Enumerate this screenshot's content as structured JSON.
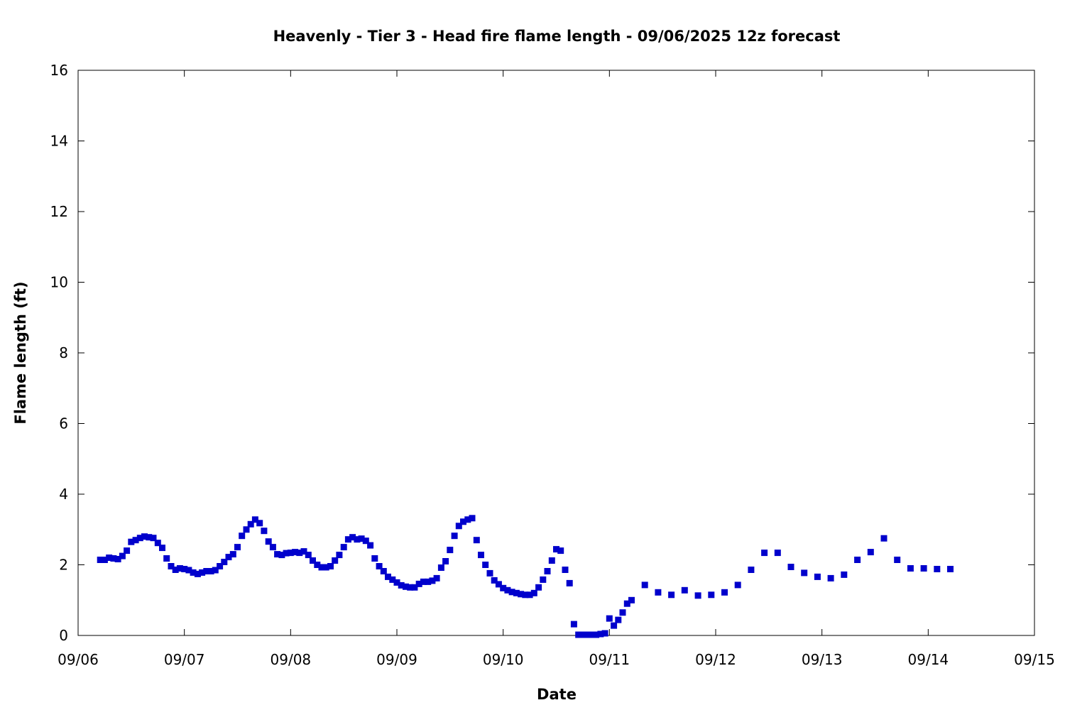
{
  "chart_data": {
    "type": "scatter",
    "title": "Heavenly - Tier 3 - Head fire flame length - 09/06/2025 12z forecast",
    "xlabel": "Date",
    "ylabel": "Flame length (ft)",
    "xlim": [
      "09/06",
      "09/15"
    ],
    "ylim": [
      0,
      16
    ],
    "x_ticks": [
      "09/06",
      "09/07",
      "09/08",
      "09/09",
      "09/10",
      "09/11",
      "09/12",
      "09/13",
      "09/14",
      "09/15"
    ],
    "y_ticks": [
      "0",
      "2",
      "4",
      "6",
      "8",
      "10",
      "12",
      "14",
      "16"
    ],
    "grid": false,
    "legend": false,
    "marker_color": "#0000cc",
    "series": [
      {
        "x": [
          "09/06 05:00",
          "09/06 06:00",
          "09/06 07:00",
          "09/06 08:00",
          "09/06 09:00",
          "09/06 10:00",
          "09/06 11:00",
          "09/06 12:00",
          "09/06 13:00",
          "09/06 14:00",
          "09/06 15:00",
          "09/06 16:00",
          "09/06 17:00",
          "09/06 18:00",
          "09/06 19:00",
          "09/06 20:00",
          "09/06 21:00",
          "09/06 22:00",
          "09/06 23:00",
          "09/07 00:00",
          "09/07 01:00",
          "09/07 02:00",
          "09/07 03:00",
          "09/07 04:00",
          "09/07 05:00",
          "09/07 06:00",
          "09/07 07:00",
          "09/07 08:00",
          "09/07 09:00",
          "09/07 10:00",
          "09/07 11:00",
          "09/07 12:00",
          "09/07 13:00",
          "09/07 14:00",
          "09/07 15:00",
          "09/07 16:00",
          "09/07 17:00",
          "09/07 18:00",
          "09/07 19:00",
          "09/07 20:00",
          "09/07 21:00",
          "09/07 22:00",
          "09/07 23:00",
          "09/08 00:00",
          "09/08 01:00",
          "09/08 02:00",
          "09/08 03:00",
          "09/08 04:00",
          "09/08 05:00",
          "09/08 06:00",
          "09/08 07:00",
          "09/08 08:00",
          "09/08 09:00",
          "09/08 10:00",
          "09/08 11:00",
          "09/08 12:00",
          "09/08 13:00",
          "09/08 14:00",
          "09/08 15:00",
          "09/08 16:00",
          "09/08 17:00",
          "09/08 18:00",
          "09/08 19:00",
          "09/08 20:00",
          "09/08 21:00",
          "09/08 22:00",
          "09/08 23:00",
          "09/09 00:00",
          "09/09 01:00",
          "09/09 02:00",
          "09/09 03:00",
          "09/09 04:00",
          "09/09 05:00",
          "09/09 06:00",
          "09/09 07:00",
          "09/09 08:00",
          "09/09 09:00",
          "09/09 10:00",
          "09/09 11:00",
          "09/09 12:00",
          "09/09 13:00",
          "09/09 14:00",
          "09/09 15:00",
          "09/09 16:00",
          "09/09 17:00",
          "09/09 18:00",
          "09/09 19:00",
          "09/09 20:00",
          "09/09 21:00",
          "09/09 22:00",
          "09/09 23:00",
          "09/10 00:00",
          "09/10 01:00",
          "09/10 02:00",
          "09/10 03:00",
          "09/10 04:00",
          "09/10 05:00",
          "09/10 06:00",
          "09/10 07:00",
          "09/10 08:00",
          "09/10 09:00",
          "09/10 10:00",
          "09/10 11:00",
          "09/10 12:00",
          "09/10 13:00",
          "09/10 14:00",
          "09/10 15:00",
          "09/10 16:00",
          "09/10 17:00",
          "09/10 18:00",
          "09/10 19:00",
          "09/10 20:00",
          "09/10 21:00",
          "09/10 22:00",
          "09/10 23:00",
          "09/11 00:00",
          "09/11 01:00",
          "09/11 02:00",
          "09/11 03:00",
          "09/11 04:00",
          "09/11 05:00",
          "09/11 08:00",
          "09/11 11:00",
          "09/11 14:00",
          "09/11 17:00",
          "09/11 20:00",
          "09/11 23:00",
          "09/12 02:00",
          "09/12 05:00",
          "09/12 08:00",
          "09/12 11:00",
          "09/12 14:00",
          "09/12 17:00",
          "09/12 20:00",
          "09/12 23:00",
          "09/13 02:00",
          "09/13 05:00",
          "09/13 08:00",
          "09/13 11:00",
          "09/13 14:00",
          "09/13 17:00",
          "09/13 20:00",
          "09/13 23:00",
          "09/14 02:00",
          "09/14 05:00"
        ],
        "y": [
          2.14,
          2.14,
          2.2,
          2.18,
          2.16,
          2.25,
          2.4,
          2.65,
          2.7,
          2.76,
          2.8,
          2.78,
          2.76,
          2.62,
          2.48,
          2.18,
          1.96,
          1.86,
          1.9,
          1.88,
          1.85,
          1.78,
          1.74,
          1.78,
          1.82,
          1.82,
          1.85,
          1.96,
          2.08,
          2.22,
          2.3,
          2.5,
          2.82,
          3.0,
          3.15,
          3.28,
          3.18,
          2.96,
          2.66,
          2.5,
          2.3,
          2.28,
          2.33,
          2.34,
          2.36,
          2.34,
          2.38,
          2.28,
          2.12,
          2.0,
          1.93,
          1.93,
          1.96,
          2.12,
          2.28,
          2.5,
          2.72,
          2.78,
          2.72,
          2.74,
          2.68,
          2.55,
          2.18,
          1.96,
          1.82,
          1.66,
          1.58,
          1.5,
          1.42,
          1.38,
          1.36,
          1.36,
          1.46,
          1.52,
          1.52,
          1.55,
          1.62,
          1.92,
          2.1,
          2.42,
          2.82,
          3.1,
          3.22,
          3.28,
          3.32,
          2.7,
          2.28,
          2.0,
          1.76,
          1.56,
          1.45,
          1.34,
          1.28,
          1.23,
          1.2,
          1.17,
          1.15,
          1.15,
          1.2,
          1.36,
          1.58,
          1.82,
          2.12,
          2.44,
          2.4,
          1.86,
          1.48,
          0.32,
          0.02,
          0.02,
          0.02,
          0.02,
          0.02,
          0.04,
          0.06,
          0.48,
          0.28,
          0.44,
          0.65,
          0.9,
          1.0,
          1.43,
          1.22,
          1.15,
          1.28,
          1.13,
          1.15,
          1.22,
          1.43,
          1.86,
          2.34,
          2.34,
          1.94,
          1.77,
          1.66,
          1.62,
          1.72,
          2.14,
          2.36,
          2.75,
          2.14,
          1.9,
          1.9,
          1.88,
          1.88
        ]
      }
    ]
  }
}
